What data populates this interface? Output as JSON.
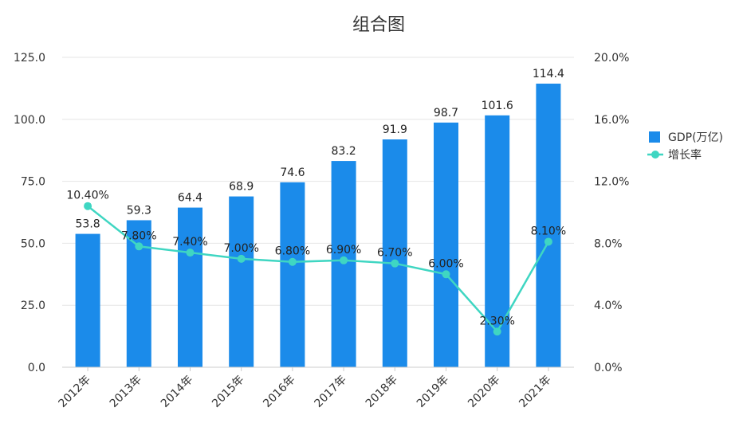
{
  "colors": {
    "bar": "#1b8bea",
    "line": "#3fd6c2",
    "grid": "#e6e6e6",
    "axis": "#cccccc",
    "text": "#333333"
  },
  "chart_data": {
    "type": "bar",
    "title": "组合图",
    "categories": [
      "2012年",
      "2013年",
      "2014年",
      "2015年",
      "2016年",
      "2017年",
      "2018年",
      "2019年",
      "2020年",
      "2021年"
    ],
    "series": [
      {
        "name": "GDP(万亿)",
        "type": "bar",
        "axis": "left",
        "values": [
          53.8,
          59.3,
          64.4,
          68.9,
          74.6,
          83.2,
          91.9,
          98.7,
          101.6,
          114.4
        ],
        "labels": [
          "53.8",
          "59.3",
          "64.4",
          "68.9",
          "74.6",
          "83.2",
          "91.9",
          "98.7",
          "101.6",
          "114.4"
        ]
      },
      {
        "name": "增长率",
        "type": "line",
        "axis": "right",
        "values": [
          10.4,
          7.8,
          7.4,
          7.0,
          6.8,
          6.9,
          6.7,
          6.0,
          2.3,
          8.1
        ],
        "labels": [
          "10.40%",
          "7.80%",
          "7.40%",
          "7.00%",
          "6.80%",
          "6.90%",
          "6.70%",
          "6.00%",
          "2.30%",
          "8.10%"
        ]
      }
    ],
    "y_left": {
      "range": [
        0,
        125
      ],
      "ticks": [
        "0.0",
        "25.0",
        "50.0",
        "75.0",
        "100.0",
        "125.0"
      ]
    },
    "y_right": {
      "range": [
        0,
        20
      ],
      "ticks": [
        "0.0%",
        "4.0%",
        "8.0%",
        "12.0%",
        "16.0%",
        "20.0%"
      ]
    },
    "grid": true,
    "legend_position": "right"
  }
}
